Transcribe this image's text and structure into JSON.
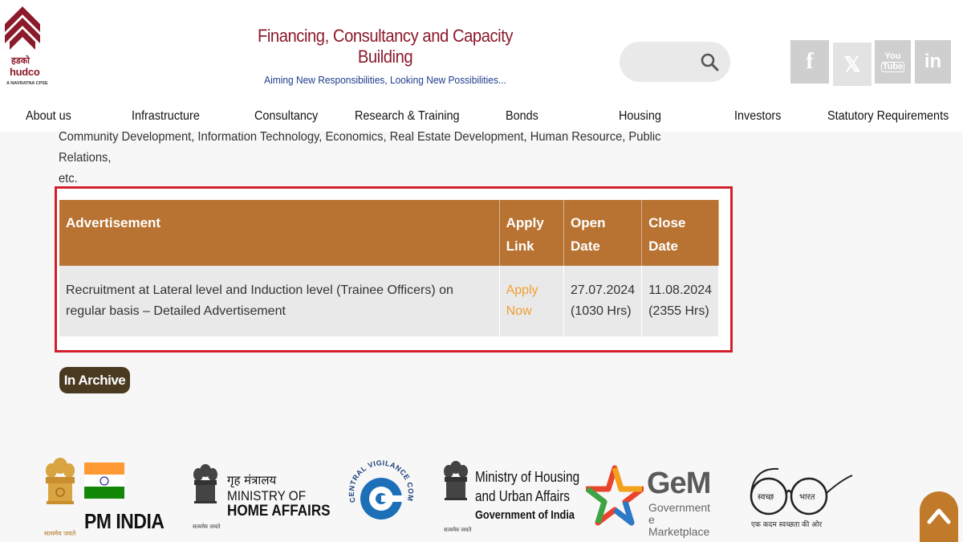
{
  "header": {
    "logo_hindi": "हडको",
    "logo_brand": "hudco",
    "logo_tagline": "A NAVRATNA CPSE",
    "title": "Financing, Consultancy and Capacity Building",
    "tagline": "Aiming New Responsibilities, Looking New Possibilities...",
    "search_placeholder": "",
    "social": {
      "facebook": "f",
      "x": "𝕏",
      "youtube_top": "You",
      "youtube_bottom": "Tube",
      "linkedin": "in"
    }
  },
  "nav": {
    "items": [
      "About us",
      "Infrastructure",
      "Consultancy",
      "Research & Training",
      "Bonds",
      "Housing",
      "Investors",
      "Statutory Requirements"
    ]
  },
  "content": {
    "intro_line1": "Community Development, Information Technology, Economics, Real Estate Development, Human Resource, Public Relations,",
    "intro_line2": "etc.",
    "table": {
      "headers": [
        "Advertisement",
        "Apply Link",
        "Open Date",
        "Close Date"
      ],
      "row": {
        "advertisement": "Recruitment at Lateral level and Induction level (Trainee Officers) on regular basis – Detailed Advertisement",
        "apply_link": "Apply Now",
        "open_date": "27.07.2024 (1030 Hrs)",
        "close_date": "11.08.2024 (2355 Hrs)"
      }
    },
    "archive_button": "In Archive"
  },
  "footer_logos": {
    "pm_india": "PM INDIA",
    "pm_emblem_caption": "सत्यमेव जयते",
    "mha_hindi": "गृह मंत्रालय",
    "mha_en1": "MINISTRY OF",
    "mha_en2": "HOME AFFAIRS",
    "mha_caption": "सत्यमेव जयते",
    "cvc": "CENTRAL VIGILANCE COMMISSION",
    "mohua_line1": "Ministry of Housing",
    "mohua_line2": "and Urban Affairs",
    "mohua_line3": "Government of India",
    "mohua_caption": "सत्यमेव जयते",
    "gem_title": "GeM",
    "gem_sub1": "Government",
    "gem_sub2": "e Marketplace",
    "swachh_left": "स्वच्छ",
    "swachh_right": "भारत",
    "swachh_tagline": "एक कदम स्वच्छता की ओर"
  },
  "colors": {
    "brand_maroon": "#8b1a2b",
    "tagline_blue": "#1f3d8c",
    "table_header": "#b87333",
    "highlight_border": "#d21f2c",
    "apply_link": "#f0a030",
    "archive_button": "#4a3a22",
    "back_to_top": "#c07a2a"
  }
}
